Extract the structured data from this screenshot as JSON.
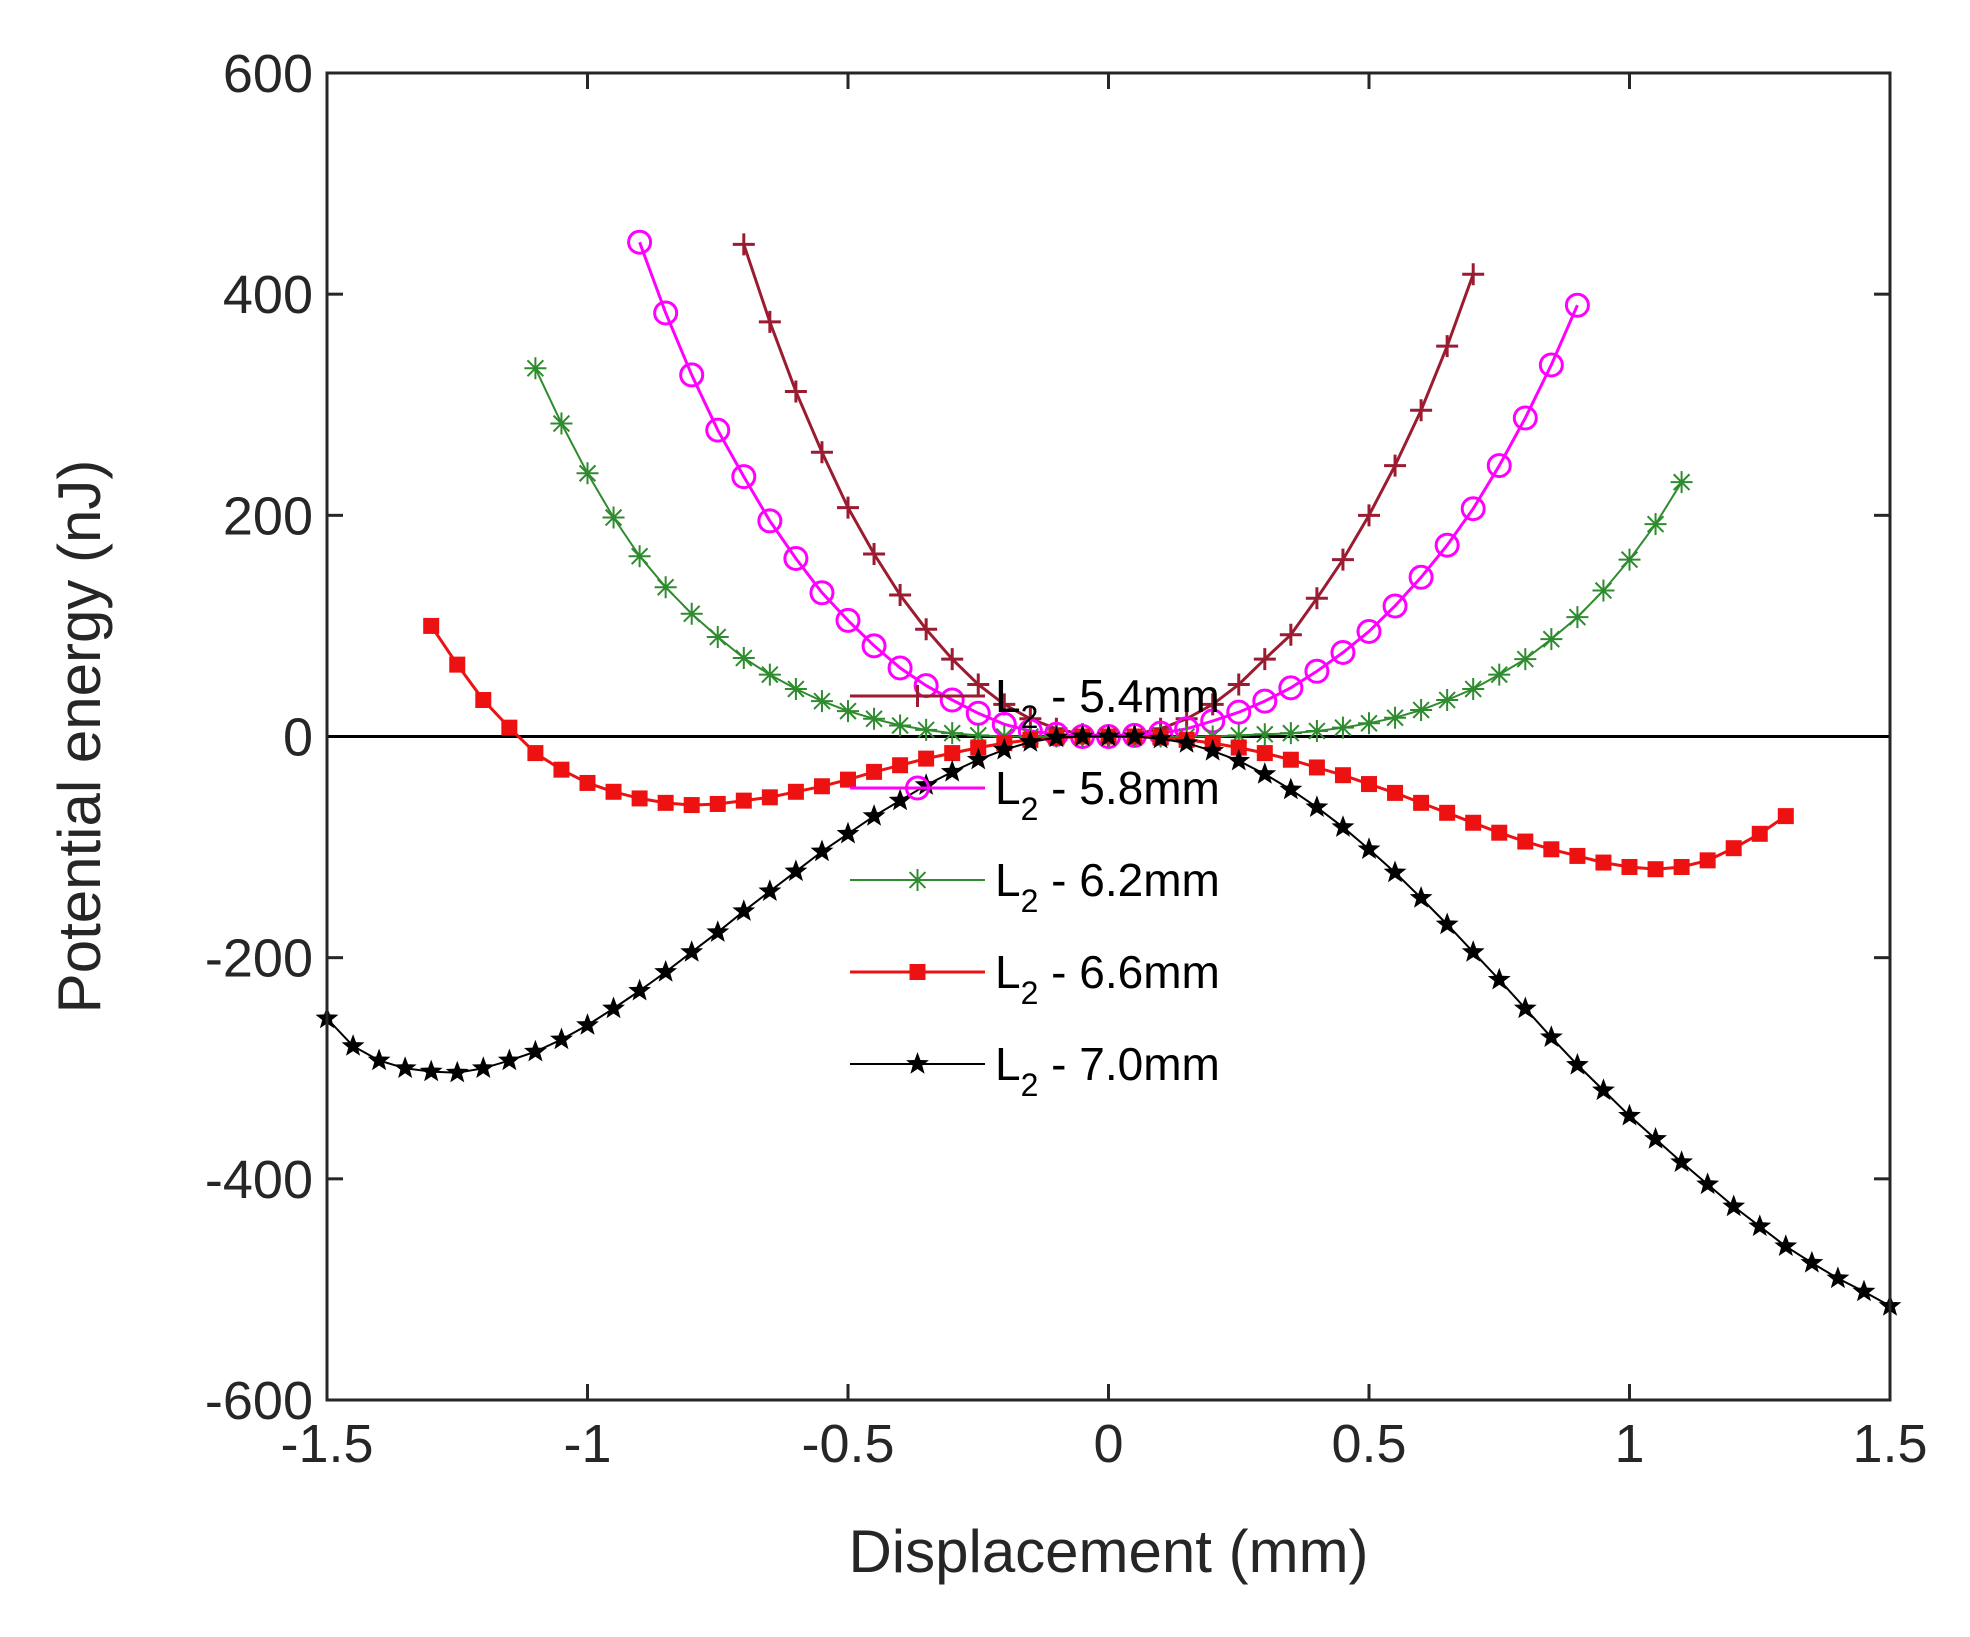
{
  "chart_data": {
    "type": "line",
    "title": "",
    "xlabel": "Displacement (mm)",
    "ylabel": "Potential energy (nJ)",
    "xlim": [
      -1.5,
      1.5
    ],
    "ylim": [
      -600,
      600
    ],
    "xticks": [
      -1.5,
      -1,
      -0.5,
      0,
      0.5,
      1,
      1.5
    ],
    "xtick_labels": [
      "-1.5",
      "-1",
      "-0.5",
      "0",
      "0.5",
      "1",
      "1.5"
    ],
    "yticks": [
      -600,
      -400,
      -200,
      0,
      200,
      400,
      600
    ],
    "ytick_labels": [
      "-600",
      "-400",
      "-200",
      "0",
      "200",
      "400",
      "600"
    ],
    "zero_line": true,
    "legend_position": "center-bottom",
    "series": [
      {
        "name": "5.4mm",
        "legend_main": "L",
        "legend_sub": "2",
        "legend_rest": " - 5.4mm",
        "color": "#9b1b30",
        "marker": "plus",
        "x": [
          -0.7,
          -0.65,
          -0.6,
          -0.55,
          -0.5,
          -0.45,
          -0.4,
          -0.35,
          -0.3,
          -0.25,
          -0.2,
          -0.15,
          -0.1,
          -0.05,
          0,
          0.05,
          0.1,
          0.15,
          0.2,
          0.25,
          0.3,
          0.35,
          0.4,
          0.45,
          0.5,
          0.55,
          0.6,
          0.65,
          0.7
        ],
        "y": [
          445,
          375,
          312,
          257,
          207,
          165,
          128,
          97,
          70,
          47,
          29,
          16,
          7,
          2,
          0,
          2,
          7,
          16,
          29,
          47,
          70,
          92,
          125,
          160,
          200,
          245,
          295,
          353,
          418
        ]
      },
      {
        "name": "5.8mm",
        "legend_main": "L",
        "legend_sub": "2",
        "legend_rest": " - 5.8mm",
        "color": "#ff00ff",
        "marker": "circle",
        "x": [
          -0.9,
          -0.85,
          -0.8,
          -0.75,
          -0.7,
          -0.65,
          -0.6,
          -0.55,
          -0.5,
          -0.45,
          -0.4,
          -0.35,
          -0.3,
          -0.25,
          -0.2,
          -0.15,
          -0.1,
          -0.05,
          0,
          0.05,
          0.1,
          0.15,
          0.2,
          0.25,
          0.3,
          0.35,
          0.4,
          0.45,
          0.5,
          0.55,
          0.6,
          0.65,
          0.7,
          0.75,
          0.8,
          0.85,
          0.9
        ],
        "y": [
          447,
          383,
          327,
          277,
          235,
          195,
          161,
          130,
          105,
          82,
          62,
          46,
          33,
          21,
          11,
          5,
          2,
          0,
          0,
          1,
          3,
          7,
          14,
          22,
          32,
          44,
          59,
          76,
          95,
          118,
          144,
          173,
          206,
          245,
          288,
          336,
          390
        ]
      },
      {
        "name": "6.2mm",
        "legend_main": "L",
        "legend_sub": "2",
        "legend_rest": " - 6.2mm",
        "color": "#2e8b2e",
        "marker": "asterisk",
        "x": [
          -1.1,
          -1.05,
          -1,
          -0.95,
          -0.9,
          -0.85,
          -0.8,
          -0.75,
          -0.7,
          -0.65,
          -0.6,
          -0.55,
          -0.5,
          -0.45,
          -0.4,
          -0.35,
          -0.3,
          -0.25,
          -0.2,
          -0.15,
          -0.1,
          -0.05,
          0,
          0.05,
          0.1,
          0.15,
          0.2,
          0.25,
          0.3,
          0.35,
          0.4,
          0.45,
          0.5,
          0.55,
          0.6,
          0.65,
          0.7,
          0.75,
          0.8,
          0.85,
          0.9,
          0.95,
          1,
          1.05,
          1.1
        ],
        "y": [
          333,
          283,
          238,
          198,
          163,
          135,
          111,
          90,
          71,
          56,
          43,
          32,
          23,
          16,
          10,
          6,
          3,
          1,
          0,
          0,
          0,
          0,
          0,
          0,
          0,
          0,
          0,
          1,
          2,
          3,
          5,
          8,
          12,
          17,
          24,
          33,
          43,
          56,
          70,
          88,
          108,
          132,
          160,
          192,
          230
        ]
      },
      {
        "name": "6.6mm",
        "legend_main": "L",
        "legend_sub": "2",
        "legend_rest": " - 6.6mm",
        "color": "#ee1111",
        "marker": "square",
        "x": [
          -1.3,
          -1.25,
          -1.2,
          -1.15,
          -1.1,
          -1.05,
          -1,
          -0.95,
          -0.9,
          -0.85,
          -0.8,
          -0.75,
          -0.7,
          -0.65,
          -0.6,
          -0.55,
          -0.5,
          -0.45,
          -0.4,
          -0.35,
          -0.3,
          -0.25,
          -0.2,
          -0.15,
          -0.1,
          -0.05,
          0,
          0.05,
          0.1,
          0.15,
          0.2,
          0.25,
          0.3,
          0.35,
          0.4,
          0.45,
          0.5,
          0.55,
          0.6,
          0.65,
          0.7,
          0.75,
          0.8,
          0.85,
          0.9,
          0.95,
          1,
          1.05,
          1.1,
          1.15,
          1.2,
          1.25,
          1.3
        ],
        "y": [
          100,
          65,
          33,
          8,
          -15,
          -30,
          -42,
          -50,
          -56,
          -60,
          -62,
          -61,
          -58,
          -55,
          -50,
          -45,
          -39,
          -32,
          -26,
          -20,
          -15,
          -10,
          -6,
          -3,
          -1,
          0,
          0,
          0,
          -1,
          -3,
          -6,
          -10,
          -15,
          -21,
          -28,
          -35,
          -43,
          -51,
          -60,
          -69,
          -78,
          -87,
          -95,
          -102,
          -108,
          -114,
          -118,
          -120,
          -118,
          -112,
          -101,
          -88,
          -72
        ]
      },
      {
        "name": "7.0mm",
        "legend_main": "L",
        "legend_sub": "2",
        "legend_rest": " - 7.0mm",
        "color": "#000000",
        "marker": "star",
        "x": [
          -1.5,
          -1.45,
          -1.4,
          -1.35,
          -1.3,
          -1.25,
          -1.2,
          -1.15,
          -1.1,
          -1.05,
          -1,
          -0.95,
          -0.9,
          -0.85,
          -0.8,
          -0.75,
          -0.7,
          -0.65,
          -0.6,
          -0.55,
          -0.5,
          -0.45,
          -0.4,
          -0.35,
          -0.3,
          -0.25,
          -0.2,
          -0.15,
          -0.1,
          -0.05,
          0,
          0.05,
          0.1,
          0.15,
          0.2,
          0.25,
          0.3,
          0.35,
          0.4,
          0.45,
          0.5,
          0.55,
          0.6,
          0.65,
          0.7,
          0.75,
          0.8,
          0.85,
          0.9,
          0.95,
          1,
          1.05,
          1.1,
          1.15,
          1.2,
          1.25,
          1.3,
          1.35,
          1.4,
          1.45,
          1.5
        ],
        "y": [
          -255,
          -280,
          -293,
          -300,
          -303,
          -304,
          -300,
          -293,
          -285,
          -274,
          -261,
          -246,
          -230,
          -213,
          -195,
          -177,
          -158,
          -140,
          -122,
          -104,
          -88,
          -72,
          -58,
          -44,
          -32,
          -21,
          -12,
          -5,
          -1,
          0,
          0,
          0,
          -2,
          -6,
          -13,
          -22,
          -34,
          -48,
          -64,
          -82,
          -102,
          -123,
          -146,
          -170,
          -195,
          -220,
          -246,
          -272,
          -297,
          -320,
          -343,
          -364,
          -385,
          -405,
          -425,
          -443,
          -461,
          -476,
          -490,
          -502,
          -515
        ]
      }
    ]
  }
}
